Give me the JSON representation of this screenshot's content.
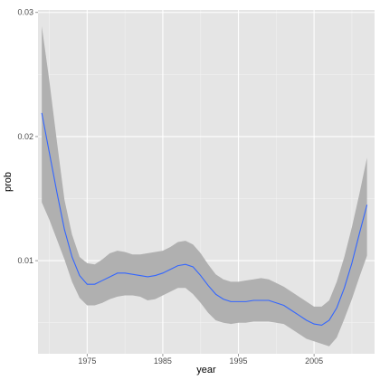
{
  "chart_data": {
    "type": "line",
    "title": "",
    "xlabel": "year",
    "ylabel": "prob",
    "xlim": [
      1968.5,
      2013
    ],
    "ylim": [
      0.0025,
      0.0302
    ],
    "x_ticks": [
      1975,
      1985,
      1995,
      2005
    ],
    "x_tick_labels": [
      "1975",
      "1985",
      "1995",
      "2005"
    ],
    "x_minor_ticks": [
      1970,
      1980,
      1990,
      2000,
      2010
    ],
    "y_ticks": [
      0.01,
      0.02,
      0.03
    ],
    "y_tick_labels": [
      "0.01",
      "0.02",
      "0.03"
    ],
    "y_minor_ticks": [
      0.005,
      0.015,
      0.025
    ],
    "grid": true,
    "legend": "none",
    "colors": {
      "panel_background": "#e5e5e5",
      "grid_major": "#ffffff",
      "grid_minor": "#f2f2f2",
      "line": "#3366ff",
      "ribbon": "#b0b0b0"
    },
    "series": [
      {
        "x": [
          1969,
          1970,
          1971,
          1972,
          1973,
          1974,
          1975,
          1976,
          1977,
          1978,
          1979,
          1980,
          1981,
          1982,
          1983,
          1984,
          1985,
          1986,
          1987,
          1988,
          1989,
          1990,
          1991,
          1992,
          1993,
          1994,
          1995,
          1996,
          1997,
          1998,
          1999,
          2000,
          2001,
          2002,
          2003,
          2004,
          2005,
          2006,
          2007,
          2008,
          2009,
          2010,
          2011,
          2012
        ],
        "y": [
          0.0219,
          0.0187,
          0.0155,
          0.0125,
          0.0103,
          0.0088,
          0.0081,
          0.0081,
          0.0084,
          0.0087,
          0.009,
          0.009,
          0.0089,
          0.0088,
          0.0087,
          0.0088,
          0.009,
          0.0093,
          0.0096,
          0.0097,
          0.0095,
          0.0088,
          0.008,
          0.0073,
          0.0069,
          0.0067,
          0.0067,
          0.0067,
          0.0068,
          0.0068,
          0.0068,
          0.0066,
          0.0064,
          0.006,
          0.0056,
          0.0052,
          0.0049,
          0.0048,
          0.0052,
          0.0062,
          0.0078,
          0.0098,
          0.0122,
          0.0145
        ],
        "lower": [
          0.0147,
          0.0133,
          0.0117,
          0.0101,
          0.0083,
          0.007,
          0.0064,
          0.0064,
          0.0066,
          0.0069,
          0.0071,
          0.0072,
          0.0072,
          0.0071,
          0.0068,
          0.0069,
          0.0072,
          0.0075,
          0.0078,
          0.0078,
          0.0073,
          0.0066,
          0.0058,
          0.0052,
          0.005,
          0.0049,
          0.005,
          0.005,
          0.0051,
          0.0051,
          0.0051,
          0.005,
          0.0049,
          0.0045,
          0.0041,
          0.0037,
          0.0035,
          0.0033,
          0.0031,
          0.0038,
          0.0053,
          0.0069,
          0.0087,
          0.0104
        ],
        "upper": [
          0.0289,
          0.0245,
          0.0196,
          0.0149,
          0.0121,
          0.0103,
          0.0098,
          0.0097,
          0.0101,
          0.0106,
          0.0108,
          0.0107,
          0.0105,
          0.0105,
          0.0106,
          0.0107,
          0.0108,
          0.0111,
          0.0115,
          0.0116,
          0.0113,
          0.0106,
          0.0097,
          0.0089,
          0.0085,
          0.0083,
          0.0083,
          0.0084,
          0.0085,
          0.0086,
          0.0085,
          0.0082,
          0.0079,
          0.0075,
          0.0071,
          0.0067,
          0.0063,
          0.0063,
          0.0068,
          0.0083,
          0.0103,
          0.0127,
          0.0154,
          0.0183
        ]
      }
    ]
  }
}
